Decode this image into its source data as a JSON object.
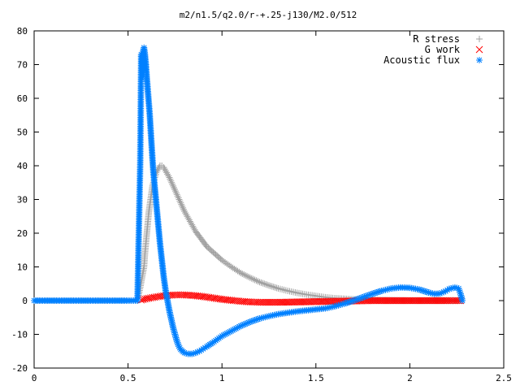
{
  "chart_data": {
    "type": "scatter",
    "title": "m2/n1.5/q2.0/r-+.25-j130/M2.0/512",
    "xlabel": "",
    "ylabel": "",
    "xlim": [
      0,
      2.5
    ],
    "ylim": [
      -20,
      80
    ],
    "x_ticks": [
      "0",
      "0.5",
      "1",
      "1.5",
      "2",
      "2.5"
    ],
    "y_ticks": [
      "-20",
      "-10",
      "0",
      "10",
      "20",
      "30",
      "40",
      "50",
      "60",
      "70",
      "80"
    ],
    "grid": false,
    "legend_position": "top-right",
    "series": [
      {
        "name": "R stress",
        "marker": "plus",
        "color": "#a0a0a0",
        "points": [
          [
            0.0,
            0
          ],
          [
            0.1,
            0
          ],
          [
            0.2,
            0
          ],
          [
            0.3,
            0
          ],
          [
            0.4,
            0
          ],
          [
            0.5,
            0
          ],
          [
            0.55,
            0
          ],
          [
            0.565,
            4
          ],
          [
            0.575,
            7
          ],
          [
            0.585,
            10
          ],
          [
            0.59,
            14
          ],
          [
            0.595,
            17
          ],
          [
            0.6,
            20
          ],
          [
            0.605,
            23
          ],
          [
            0.61,
            26
          ],
          [
            0.615,
            28
          ],
          [
            0.62,
            30
          ],
          [
            0.625,
            32
          ],
          [
            0.63,
            34
          ],
          [
            0.635,
            35
          ],
          [
            0.64,
            36
          ],
          [
            0.645,
            37
          ],
          [
            0.65,
            38
          ],
          [
            0.655,
            38.5
          ],
          [
            0.66,
            39
          ],
          [
            0.665,
            39.5
          ],
          [
            0.67,
            40
          ],
          [
            0.68,
            40
          ],
          [
            0.69,
            39.5
          ],
          [
            0.7,
            38.5
          ],
          [
            0.72,
            36.5
          ],
          [
            0.74,
            34
          ],
          [
            0.76,
            31.5
          ],
          [
            0.78,
            29
          ],
          [
            0.8,
            26.5
          ],
          [
            0.82,
            24.5
          ],
          [
            0.84,
            22.5
          ],
          [
            0.86,
            20.5
          ],
          [
            0.88,
            19
          ],
          [
            0.9,
            17.5
          ],
          [
            0.92,
            16
          ],
          [
            0.94,
            15
          ],
          [
            0.96,
            14
          ],
          [
            0.98,
            13
          ],
          [
            1.0,
            12
          ],
          [
            1.05,
            10
          ],
          [
            1.1,
            8.2
          ],
          [
            1.15,
            6.8
          ],
          [
            1.2,
            5.5
          ],
          [
            1.25,
            4.5
          ],
          [
            1.3,
            3.6
          ],
          [
            1.35,
            2.9
          ],
          [
            1.4,
            2.3
          ],
          [
            1.45,
            1.8
          ],
          [
            1.5,
            1.4
          ],
          [
            1.55,
            1.0
          ],
          [
            1.6,
            0.7
          ],
          [
            1.7,
            0.4
          ],
          [
            1.8,
            0.2
          ],
          [
            1.9,
            0.1
          ],
          [
            2.0,
            0
          ],
          [
            2.1,
            0
          ],
          [
            2.2,
            0
          ],
          [
            2.27,
            0
          ]
        ]
      },
      {
        "name": "G work",
        "marker": "cross",
        "color": "#ff0000",
        "points": [
          [
            0.57,
            0.2
          ],
          [
            0.6,
            0.6
          ],
          [
            0.65,
            1.1
          ],
          [
            0.7,
            1.5
          ],
          [
            0.75,
            1.7
          ],
          [
            0.8,
            1.7
          ],
          [
            0.85,
            1.5
          ],
          [
            0.9,
            1.2
          ],
          [
            0.95,
            0.8
          ],
          [
            1.0,
            0.4
          ],
          [
            1.05,
            0.1
          ],
          [
            1.1,
            -0.2
          ],
          [
            1.15,
            -0.4
          ],
          [
            1.2,
            -0.5
          ],
          [
            1.3,
            -0.5
          ],
          [
            1.4,
            -0.4
          ],
          [
            1.5,
            -0.3
          ],
          [
            1.6,
            -0.2
          ],
          [
            1.7,
            -0.1
          ],
          [
            1.8,
            0
          ],
          [
            1.9,
            0
          ],
          [
            2.0,
            0
          ],
          [
            2.1,
            0
          ],
          [
            2.2,
            0
          ],
          [
            2.27,
            0
          ]
        ]
      },
      {
        "name": "Acoustic flux",
        "marker": "star",
        "color": "#0080ff",
        "points": [
          [
            0.0,
            0
          ],
          [
            0.1,
            0
          ],
          [
            0.2,
            0
          ],
          [
            0.3,
            0
          ],
          [
            0.4,
            0
          ],
          [
            0.5,
            0
          ],
          [
            0.55,
            0
          ],
          [
            0.565,
            41.5
          ],
          [
            0.57,
            73
          ],
          [
            0.575,
            66
          ],
          [
            0.58,
            74
          ],
          [
            0.585,
            75
          ],
          [
            0.59,
            73
          ],
          [
            0.595,
            70
          ],
          [
            0.6,
            66
          ],
          [
            0.605,
            62.5
          ],
          [
            0.61,
            59
          ],
          [
            0.615,
            55.5
          ],
          [
            0.62,
            51
          ],
          [
            0.625,
            46.5
          ],
          [
            0.63,
            42
          ],
          [
            0.635,
            38
          ],
          [
            0.64,
            35
          ],
          [
            0.645,
            32
          ],
          [
            0.65,
            29
          ],
          [
            0.655,
            26
          ],
          [
            0.66,
            23
          ],
          [
            0.665,
            20
          ],
          [
            0.67,
            17
          ],
          [
            0.675,
            14.5
          ],
          [
            0.68,
            12
          ],
          [
            0.685,
            9.5
          ],
          [
            0.69,
            7
          ],
          [
            0.695,
            5
          ],
          [
            0.7,
            3
          ],
          [
            0.71,
            0
          ],
          [
            0.72,
            -3
          ],
          [
            0.73,
            -5.5
          ],
          [
            0.74,
            -8
          ],
          [
            0.75,
            -10
          ],
          [
            0.76,
            -12
          ],
          [
            0.77,
            -13.5
          ],
          [
            0.78,
            -14.5
          ],
          [
            0.8,
            -15.5
          ],
          [
            0.82,
            -15.8
          ],
          [
            0.84,
            -15.8
          ],
          [
            0.86,
            -15.5
          ],
          [
            0.88,
            -15
          ],
          [
            0.9,
            -14.3
          ],
          [
            0.92,
            -13.6
          ],
          [
            0.95,
            -12.5
          ],
          [
            1.0,
            -10.5
          ],
          [
            1.05,
            -9
          ],
          [
            1.1,
            -7.5
          ],
          [
            1.15,
            -6.3
          ],
          [
            1.2,
            -5.3
          ],
          [
            1.25,
            -4.6
          ],
          [
            1.3,
            -4
          ],
          [
            1.35,
            -3.6
          ],
          [
            1.4,
            -3.2
          ],
          [
            1.45,
            -2.9
          ],
          [
            1.5,
            -2.6
          ],
          [
            1.55,
            -2.3
          ],
          [
            1.6,
            -1.7
          ],
          [
            1.65,
            -0.9
          ],
          [
            1.7,
            0
          ],
          [
            1.75,
            1
          ],
          [
            1.8,
            2
          ],
          [
            1.85,
            2.9
          ],
          [
            1.9,
            3.6
          ],
          [
            1.95,
            3.9
          ],
          [
            2.0,
            3.8
          ],
          [
            2.05,
            3.3
          ],
          [
            2.1,
            2.4
          ],
          [
            2.13,
            2
          ],
          [
            2.16,
            2.1
          ],
          [
            2.19,
            2.8
          ],
          [
            2.21,
            3.5
          ],
          [
            2.24,
            3.9
          ],
          [
            2.26,
            3.6
          ],
          [
            2.27,
            2
          ],
          [
            2.28,
            0
          ]
        ]
      }
    ]
  }
}
